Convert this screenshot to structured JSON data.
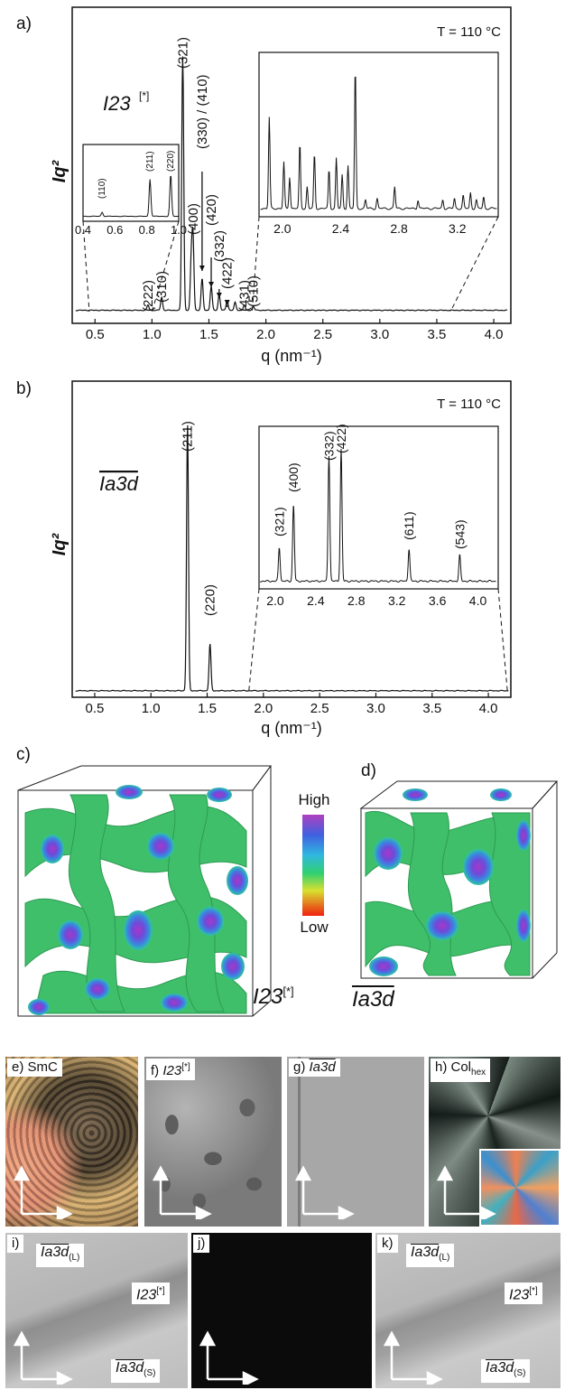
{
  "figure": {
    "panels": {
      "a": "a)",
      "b": "b)",
      "c": "c)",
      "d": "d)",
      "e": "e) SmC",
      "f": "f) I23[*]",
      "g": "g) Ia3d",
      "h": "h) Colhex",
      "i": "i)",
      "j": "j)",
      "k": "k)"
    }
  },
  "chart_data": [
    {
      "id": "a",
      "type": "line",
      "xlabel": "q (nm⁻¹)",
      "ylabel": "Iq²",
      "xlim": [
        0.3,
        4.15
      ],
      "xticks": [
        "0.5",
        "1.0",
        "1.5",
        "2.0",
        "2.5",
        "3.0",
        "3.5",
        "4.0"
      ],
      "phase_label": "I23",
      "phase_sup": "[*]",
      "temperature_label": "T = 110 °C",
      "peaks": [
        {
          "q": 0.965,
          "h": 0.02,
          "label": "(222)"
        },
        {
          "q": 1.085,
          "h": 0.05,
          "label": "(310)"
        },
        {
          "q": 1.27,
          "h": 0.97,
          "label": "(321)"
        },
        {
          "q": 1.345,
          "h": 0.18,
          "label": ""
        },
        {
          "q": 1.36,
          "h": 0.27,
          "label": "(400)"
        },
        {
          "q": 1.44,
          "h": 0.12,
          "label": "(330) / (410)"
        },
        {
          "q": 1.52,
          "h": 0.09,
          "label": "(420)"
        },
        {
          "q": 1.59,
          "h": 0.06,
          "label": "(332)"
        },
        {
          "q": 1.66,
          "h": 0.04,
          "label": "(422)"
        },
        {
          "q": 1.73,
          "h": 0.03,
          "label": ""
        },
        {
          "q": 1.81,
          "h": 0.02,
          "label": "(431)"
        },
        {
          "q": 1.89,
          "h": 0.015,
          "label": "(510)"
        }
      ],
      "inset_left": {
        "xlim": [
          0.4,
          1.0
        ],
        "xticks": [
          "0.4",
          "0.6",
          "0.8",
          "1.0"
        ],
        "peaks": [
          {
            "q": 0.52,
            "h": 0.06,
            "label": "(110)"
          },
          {
            "q": 0.82,
            "h": 0.55,
            "label": "(211)"
          },
          {
            "q": 0.95,
            "h": 0.62,
            "label": "(220)"
          }
        ]
      },
      "inset_right": {
        "xlim": [
          1.84,
          3.48
        ],
        "xticks": [
          "2.0",
          "2.4",
          "2.8",
          "3.2"
        ],
        "peaks": [
          {
            "q": 1.91,
            "h": 0.63
          },
          {
            "q": 2.01,
            "h": 0.32
          },
          {
            "q": 2.05,
            "h": 0.22
          },
          {
            "q": 2.12,
            "h": 0.45
          },
          {
            "q": 2.17,
            "h": 0.15
          },
          {
            "q": 2.22,
            "h": 0.38
          },
          {
            "q": 2.32,
            "h": 0.27
          },
          {
            "q": 2.37,
            "h": 0.35
          },
          {
            "q": 2.41,
            "h": 0.23
          },
          {
            "q": 2.45,
            "h": 0.3
          },
          {
            "q": 2.5,
            "h": 0.98
          },
          {
            "q": 2.57,
            "h": 0.06
          },
          {
            "q": 2.65,
            "h": 0.07
          },
          {
            "q": 2.77,
            "h": 0.15
          },
          {
            "q": 2.93,
            "h": 0.06
          },
          {
            "q": 3.1,
            "h": 0.06
          },
          {
            "q": 3.18,
            "h": 0.07
          },
          {
            "q": 3.24,
            "h": 0.09
          },
          {
            "q": 3.29,
            "h": 0.11
          },
          {
            "q": 3.33,
            "h": 0.06
          },
          {
            "q": 3.38,
            "h": 0.08
          }
        ]
      }
    },
    {
      "id": "b",
      "type": "line",
      "xlabel": "q (nm⁻¹)",
      "ylabel": "Iq²",
      "xlim": [
        0.3,
        4.2
      ],
      "xticks": [
        "0.5",
        "1.0",
        "1.5",
        "2.0",
        "2.5",
        "3.0",
        "3.5",
        "4.0"
      ],
      "phase_label": "Ia3d",
      "temperature_label": "T = 110 °C",
      "peaks": [
        {
          "q": 1.325,
          "h": 0.97,
          "label": "(211)"
        },
        {
          "q": 1.525,
          "h": 0.17,
          "label": "(220)"
        }
      ],
      "inset": {
        "xlim": [
          1.84,
          4.2
        ],
        "xticks": [
          "2.0",
          "2.4",
          "2.8",
          "3.2",
          "3.6",
          "4.0"
        ],
        "peaks": [
          {
            "q": 2.04,
            "h": 0.22,
            "label": "(321)"
          },
          {
            "q": 2.18,
            "h": 0.5,
            "label": "(400)"
          },
          {
            "q": 2.53,
            "h": 0.82,
            "label": "(332)"
          },
          {
            "q": 2.65,
            "h": 0.86,
            "label": "(422)"
          },
          {
            "q": 3.32,
            "h": 0.21,
            "label": "(611)"
          },
          {
            "q": 3.82,
            "h": 0.17,
            "label": "(543)"
          }
        ]
      }
    }
  ],
  "models": {
    "colorbar_high": "High",
    "colorbar_low": "Low",
    "left_caption": "I23",
    "left_caption_sup": "[*]",
    "right_caption": "Ia3d"
  },
  "micrographs": {
    "e_label": "e) SmC",
    "f_label_prefix": "f)",
    "f_label_phase": "I23",
    "f_label_sup": "[*]",
    "g_label_prefix": "g)",
    "g_label_phase": "Ia3d",
    "h_label_prefix": "h) Col",
    "h_label_sub": "hex",
    "i_label": "i)",
    "i_top": "Ia3d",
    "i_top_sub": "(L)",
    "i_mid": "I23",
    "i_mid_sup": "[*]",
    "i_bottom": "Ia3d",
    "i_bottom_sub": "(S)",
    "j_label": "j)",
    "k_label": "k)",
    "k_top": "Ia3d",
    "k_top_sub": "(L)",
    "k_mid": "I23",
    "k_mid_sup": "[*]",
    "k_bottom": "Ia3d",
    "k_bottom_sub": "(S)"
  }
}
